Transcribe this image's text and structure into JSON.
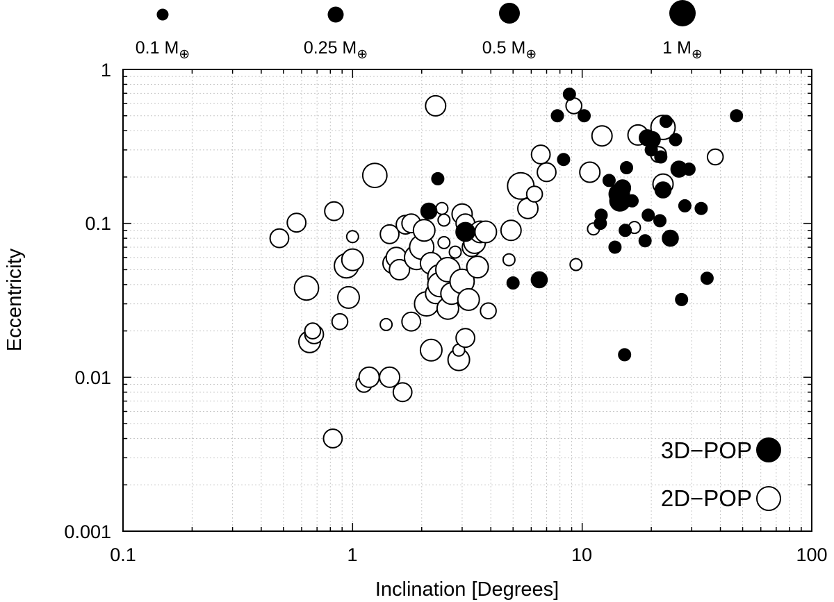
{
  "chart_data": {
    "type": "scatter",
    "title": "",
    "xlabel": "Inclination [Degrees]",
    "ylabel": "Eccentricity",
    "xscale": "log",
    "yscale": "log",
    "xlim": [
      0.1,
      100
    ],
    "ylim": [
      0.001,
      1
    ],
    "grid": true,
    "x_tick_labels": [
      "0.1",
      "1",
      "10",
      "100"
    ],
    "y_tick_labels": [
      "1",
      "0.1",
      "0.01",
      "0.001"
    ],
    "size_key": [
      {
        "label": "0.1 M",
        "mass": 0.1
      },
      {
        "label": "0.25 M",
        "mass": 0.25
      },
      {
        "label": "0.5 M",
        "mass": 0.5
      },
      {
        "label": "1 M",
        "mass": 1
      }
    ],
    "size_key_symbol": "⊕",
    "legend": [
      {
        "label": "3D−POP",
        "fill": "#000000"
      },
      {
        "label": "2D−POP",
        "fill": "#ffffff"
      }
    ],
    "legend_position": "bottom-right",
    "series": [
      {
        "name": "2D-POP",
        "fill": "#ffffff",
        "points": [
          [
            0.48,
            0.08,
            0.4
          ],
          [
            0.57,
            0.101,
            0.4
          ],
          [
            0.63,
            0.038,
            0.8
          ],
          [
            0.65,
            0.017,
            0.6
          ],
          [
            0.68,
            0.019,
            0.4
          ],
          [
            0.67,
            0.02,
            0.25
          ],
          [
            0.83,
            0.12,
            0.4
          ],
          [
            0.82,
            0.004,
            0.4
          ],
          [
            0.88,
            0.023,
            0.25
          ],
          [
            0.94,
            0.053,
            0.8
          ],
          [
            0.96,
            0.033,
            0.6
          ],
          [
            1.0,
            0.082,
            0.1
          ],
          [
            1.0,
            0.058,
            0.6
          ],
          [
            1.12,
            0.009,
            0.25
          ],
          [
            1.18,
            0.01,
            0.5
          ],
          [
            1.25,
            0.205,
            0.8
          ],
          [
            1.4,
            0.022,
            0.1
          ],
          [
            1.45,
            0.01,
            0.5
          ],
          [
            1.45,
            0.085,
            0.4
          ],
          [
            1.5,
            0.055,
            0.5
          ],
          [
            1.55,
            0.06,
            0.5
          ],
          [
            1.6,
            0.05,
            0.5
          ],
          [
            1.65,
            0.008,
            0.4
          ],
          [
            1.7,
            0.098,
            0.4
          ],
          [
            1.8,
            0.023,
            0.4
          ],
          [
            1.8,
            0.1,
            0.4
          ],
          [
            1.9,
            0.06,
            0.8
          ],
          [
            2.0,
            0.07,
            0.8
          ],
          [
            2.05,
            0.09,
            0.6
          ],
          [
            2.1,
            0.03,
            0.8
          ],
          [
            2.2,
            0.015,
            0.6
          ],
          [
            2.2,
            0.055,
            0.6
          ],
          [
            2.3,
            0.58,
            0.5
          ],
          [
            2.3,
            0.035,
            0.5
          ],
          [
            2.4,
            0.045,
            0.8
          ],
          [
            2.4,
            0.04,
            0.8
          ],
          [
            2.45,
            0.125,
            0.1
          ],
          [
            2.5,
            0.105,
            0.1
          ],
          [
            2.5,
            0.075,
            0.1
          ],
          [
            2.6,
            0.028,
            0.6
          ],
          [
            2.6,
            0.05,
            0.8
          ],
          [
            2.7,
            0.035,
            0.6
          ],
          [
            2.9,
            0.013,
            0.6
          ],
          [
            2.9,
            0.015,
            0.1
          ],
          [
            2.8,
            0.065,
            0.1
          ],
          [
            3.0,
            0.042,
            0.8
          ],
          [
            3.0,
            0.115,
            0.5
          ],
          [
            3.1,
            0.018,
            0.4
          ],
          [
            3.1,
            0.1,
            0.4
          ],
          [
            3.2,
            0.032,
            0.6
          ],
          [
            3.3,
            0.07,
            0.4
          ],
          [
            3.4,
            0.075,
            0.6
          ],
          [
            3.5,
            0.052,
            0.6
          ],
          [
            3.6,
            0.088,
            0.6
          ],
          [
            3.8,
            0.088,
            0.6
          ],
          [
            3.9,
            0.027,
            0.25
          ],
          [
            4.8,
            0.058,
            0.1
          ],
          [
            4.9,
            0.09,
            0.5
          ],
          [
            5.4,
            0.175,
            1.0
          ],
          [
            5.8,
            0.125,
            0.5
          ],
          [
            6.2,
            0.155,
            0.25
          ],
          [
            6.6,
            0.28,
            0.4
          ],
          [
            7.0,
            0.215,
            0.4
          ],
          [
            9.2,
            0.58,
            0.25
          ],
          [
            9.4,
            0.054,
            0.1
          ],
          [
            10.8,
            0.215,
            0.5
          ],
          [
            11.2,
            0.092,
            0.1
          ],
          [
            12.2,
            0.37,
            0.5
          ],
          [
            16.9,
            0.094,
            0.1
          ],
          [
            17.5,
            0.375,
            0.5
          ],
          [
            21.5,
            0.28,
            0.25
          ],
          [
            22.5,
            0.42,
            0.8
          ],
          [
            22.5,
            0.18,
            0.5
          ],
          [
            38.0,
            0.27,
            0.25
          ]
        ]
      },
      {
        "name": "3D-POP",
        "fill": "#000000",
        "points": [
          [
            2.15,
            0.12,
            0.25
          ],
          [
            2.35,
            0.195,
            0.1
          ],
          [
            3.1,
            0.088,
            0.4
          ],
          [
            5.0,
            0.041,
            0.1
          ],
          [
            6.5,
            0.043,
            0.25
          ],
          [
            7.8,
            0.5,
            0.1
          ],
          [
            8.3,
            0.26,
            0.1
          ],
          [
            8.8,
            0.69,
            0.1
          ],
          [
            10.2,
            0.5,
            0.1
          ],
          [
            12.0,
            0.1,
            0.1
          ],
          [
            12.1,
            0.113,
            0.1
          ],
          [
            13.1,
            0.19,
            0.1
          ],
          [
            13.9,
            0.07,
            0.1
          ],
          [
            14.5,
            0.155,
            0.5
          ],
          [
            14.6,
            0.14,
            0.5
          ],
          [
            15.0,
            0.17,
            0.25
          ],
          [
            15.3,
            0.014,
            0.1
          ],
          [
            15.4,
            0.09,
            0.1
          ],
          [
            15.6,
            0.23,
            0.1
          ],
          [
            16.5,
            0.14,
            0.1
          ],
          [
            18.8,
            0.077,
            0.1
          ],
          [
            19.2,
            0.36,
            0.25
          ],
          [
            19.4,
            0.113,
            0.1
          ],
          [
            20.0,
            0.3,
            0.1
          ],
          [
            20.2,
            0.35,
            0.25
          ],
          [
            21.8,
            0.104,
            0.1
          ],
          [
            22.0,
            0.27,
            0.1
          ],
          [
            22.5,
            0.165,
            0.25
          ],
          [
            23.2,
            0.46,
            0.1
          ],
          [
            24.2,
            0.08,
            0.25
          ],
          [
            25.5,
            0.35,
            0.1
          ],
          [
            26.4,
            0.225,
            0.25
          ],
          [
            27.1,
            0.032,
            0.1
          ],
          [
            28.0,
            0.13,
            0.1
          ],
          [
            29.2,
            0.225,
            0.1
          ],
          [
            33.0,
            0.125,
            0.1
          ],
          [
            35.0,
            0.044,
            0.1
          ],
          [
            47.0,
            0.5,
            0.1
          ]
        ]
      }
    ]
  }
}
